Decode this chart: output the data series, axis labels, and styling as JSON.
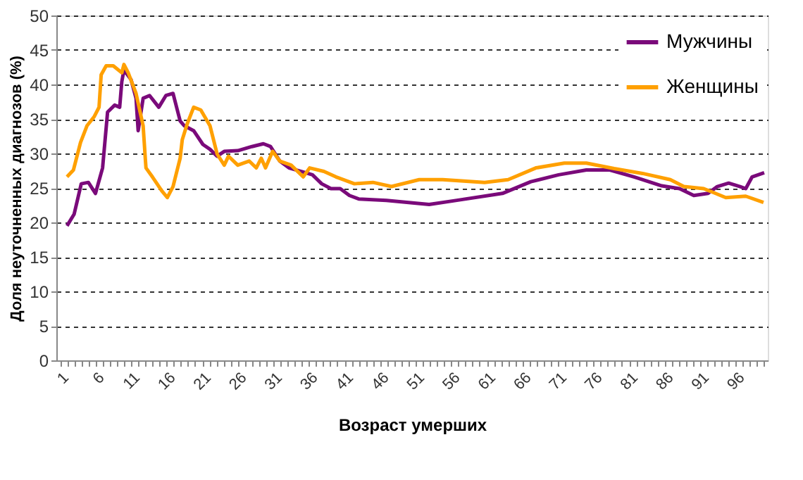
{
  "chart_data": {
    "type": "line",
    "xlabel": "Возраст умерших",
    "ylabel": "Доля неуточненных диагнозов (%)",
    "xlim": [
      0.5,
      100.5
    ],
    "ylim": [
      0,
      50
    ],
    "yticks": [
      0,
      5,
      10,
      15,
      20,
      25,
      30,
      35,
      40,
      45,
      50
    ],
    "xticks": [
      1,
      {
        "value": 2,
        "label": null
      },
      {
        "value": 3,
        "label": null
      },
      {
        "value": 4,
        "label": null
      },
      {
        "value": 5,
        "label": null
      },
      6,
      {
        "value": 7,
        "label": null
      },
      {
        "value": 8,
        "label": null
      },
      {
        "value": 9,
        "label": null
      },
      {
        "value": 10,
        "label": null
      },
      11,
      {
        "value": 12,
        "label": null
      },
      {
        "value": 13,
        "label": null
      },
      {
        "value": 14,
        "label": null
      },
      {
        "value": 15,
        "label": null
      },
      16,
      {
        "value": 17,
        "label": null
      },
      {
        "value": 18,
        "label": null
      },
      {
        "value": 19,
        "label": null
      },
      {
        "value": 20,
        "label": null
      },
      21,
      {
        "value": 22,
        "label": null
      },
      {
        "value": 23,
        "label": null
      },
      {
        "value": 24,
        "label": null
      },
      {
        "value": 25,
        "label": null
      },
      26,
      {
        "value": 27,
        "label": null
      },
      {
        "value": 28,
        "label": null
      },
      {
        "value": 29,
        "label": null
      },
      {
        "value": 30,
        "label": null
      },
      31,
      {
        "value": 32,
        "label": null
      },
      {
        "value": 33,
        "label": null
      },
      {
        "value": 34,
        "label": null
      },
      {
        "value": 35,
        "label": null
      },
      36,
      {
        "value": 37,
        "label": null
      },
      {
        "value": 38,
        "label": null
      },
      {
        "value": 39,
        "label": null
      },
      {
        "value": 40,
        "label": null
      },
      41,
      {
        "value": 42,
        "label": null
      },
      {
        "value": 43,
        "label": null
      },
      {
        "value": 44,
        "label": null
      },
      {
        "value": 45,
        "label": null
      },
      46,
      {
        "value": 47,
        "label": null
      },
      {
        "value": 48,
        "label": null
      },
      {
        "value": 49,
        "label": null
      },
      {
        "value": 50,
        "label": null
      },
      51,
      {
        "value": 52,
        "label": null
      },
      {
        "value": 53,
        "label": null
      },
      {
        "value": 54,
        "label": null
      },
      {
        "value": 55,
        "label": null
      },
      56,
      {
        "value": 57,
        "label": null
      },
      {
        "value": 58,
        "label": null
      },
      {
        "value": 59,
        "label": null
      },
      {
        "value": 60,
        "label": null
      },
      61,
      {
        "value": 62,
        "label": null
      },
      {
        "value": 63,
        "label": null
      },
      {
        "value": 64,
        "label": null
      },
      {
        "value": 65,
        "label": null
      },
      66,
      {
        "value": 67,
        "label": null
      },
      {
        "value": 68,
        "label": null
      },
      {
        "value": 69,
        "label": null
      },
      {
        "value": 70,
        "label": null
      },
      71,
      {
        "value": 72,
        "label": null
      },
      {
        "value": 73,
        "label": null
      },
      {
        "value": 74,
        "label": null
      },
      {
        "value": 75,
        "label": null
      },
      76,
      {
        "value": 77,
        "label": null
      },
      {
        "value": 78,
        "label": null
      },
      {
        "value": 79,
        "label": null
      },
      {
        "value": 80,
        "label": null
      },
      81,
      {
        "value": 82,
        "label": null
      },
      {
        "value": 83,
        "label": null
      },
      {
        "value": 84,
        "label": null
      },
      {
        "value": 85,
        "label": null
      },
      86,
      {
        "value": 87,
        "label": null
      },
      {
        "value": 88,
        "label": null
      },
      {
        "value": 89,
        "label": null
      },
      {
        "value": 90,
        "label": null
      },
      91,
      {
        "value": 92,
        "label": null
      },
      {
        "value": 93,
        "label": null
      },
      {
        "value": 94,
        "label": null
      },
      {
        "value": 95,
        "label": null
      },
      96,
      {
        "value": 97,
        "label": null
      },
      {
        "value": 98,
        "label": null
      },
      {
        "value": 99,
        "label": null
      },
      {
        "value": 100,
        "label": null
      }
    ],
    "grid": "y",
    "legend": "top right",
    "line_style": "solid",
    "marker": "none",
    "series": [
      {
        "name": "Мужчины",
        "color": "#7a0a7a",
        "x": [
          2,
          3,
          4,
          5,
          6,
          7,
          7.7,
          8.7,
          9.4,
          9.7,
          10,
          11,
          11.7,
          12,
          12.7,
          13.6,
          14.9,
          15.9,
          16.9,
          17.9,
          18.5,
          19.8,
          21.1,
          22.1,
          23.1,
          24.1,
          26,
          28,
          29.6,
          30.6,
          31.9,
          33.2,
          35.2,
          36.5,
          37.8,
          39.1,
          40.4,
          41.7,
          43,
          46.9,
          52.9,
          56.8,
          63.2,
          67.2,
          71.1,
          75,
          78.3,
          81.7,
          85.6,
          88.1,
          90.1,
          92.1,
          93.4,
          95,
          96.6,
          97.4,
          98.3,
          100
        ],
        "values": [
          19.5,
          21.2,
          25.6,
          25.8,
          24.2,
          27.9,
          36,
          37,
          36.7,
          40.4,
          42.1,
          40.7,
          38,
          33.3,
          38,
          38.4,
          36.7,
          38.4,
          38.7,
          34.7,
          34,
          33.3,
          31.3,
          30.6,
          29.6,
          30.3,
          30.4,
          31,
          31.4,
          31,
          28.9,
          27.9,
          27.3,
          26.9,
          25.6,
          24.9,
          24.9,
          23.9,
          23.4,
          23.2,
          22.6,
          23.2,
          24.2,
          25.9,
          26.9,
          27.6,
          27.6,
          26.6,
          25.3,
          24.9,
          23.9,
          24.2,
          25.2,
          25.7,
          25.2,
          24.9,
          26.6,
          27.2
        ]
      },
      {
        "name": "Женщины",
        "color": "#ffa000",
        "x": [
          2,
          2.9,
          3.9,
          4.8,
          5.8,
          6.5,
          6.8,
          7.5,
          8.5,
          9.7,
          10,
          10.6,
          11.7,
          12.7,
          13,
          13.1,
          14,
          15.3,
          16.1,
          16.9,
          17.9,
          18.2,
          18.9,
          19.8,
          20.8,
          22.1,
          23.1,
          24.1,
          24.7,
          26,
          27.6,
          28.6,
          29.3,
          29.9,
          30.9,
          31.9,
          33.5,
          35.2,
          36.1,
          38.1,
          39.8,
          42.4,
          45,
          47.6,
          51.5,
          54.8,
          60.7,
          64,
          67.9,
          71.9,
          75,
          78.9,
          82.9,
          86.8,
          88.7,
          91.5,
          94.6,
          97.4,
          99.9
        ],
        "values": [
          26.6,
          27.6,
          31.6,
          34,
          35.3,
          36.7,
          41.4,
          42.7,
          42.7,
          41.7,
          42.9,
          41.7,
          38.7,
          34,
          29.3,
          27.9,
          26.6,
          24.6,
          23.6,
          25.2,
          29.3,
          32,
          34.3,
          36.7,
          36.3,
          34,
          29.9,
          28.3,
          29.6,
          28.3,
          28.9,
          27.9,
          29.3,
          27.9,
          30.3,
          28.9,
          28.3,
          26.6,
          27.9,
          27.4,
          26.6,
          25.6,
          25.8,
          25.2,
          26.2,
          26.2,
          25.8,
          26.2,
          27.9,
          28.6,
          28.6,
          27.8,
          27.1,
          26.2,
          25.2,
          24.9,
          23.6,
          23.8,
          22.9
        ]
      }
    ]
  }
}
